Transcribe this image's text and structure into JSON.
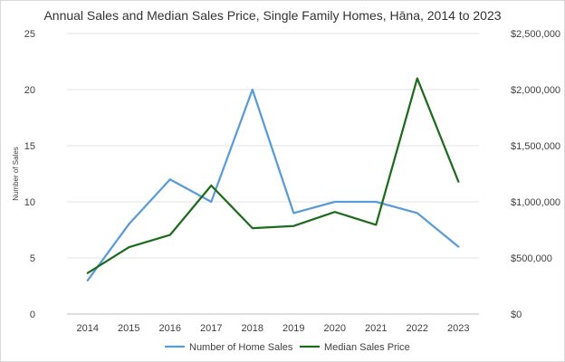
{
  "chart_data": {
    "type": "line",
    "title": "Annual Sales and Median Sales Price, Single Family Homes, Hāna, 2014 to 2023",
    "xlabel": "",
    "ylabel": "Number of Sales",
    "y2label": "",
    "categories": [
      "2014",
      "2015",
      "2016",
      "2017",
      "2018",
      "2019",
      "2020",
      "2021",
      "2022",
      "2023"
    ],
    "ylim": [
      0,
      25
    ],
    "y_ticks": [
      "0",
      "5",
      "10",
      "15",
      "20",
      "25"
    ],
    "y2lim": [
      0,
      2500000
    ],
    "y2_ticks": [
      "$0",
      "$500,000",
      "$1,000,000",
      "$1,500,000",
      "$2,000,000",
      "$2,500,000"
    ],
    "grid": true,
    "legend_position": "bottom",
    "series": [
      {
        "name": "Number of Home Sales",
        "axis": "left",
        "color": "#5b9bd5",
        "values": [
          3,
          8,
          12,
          10,
          20,
          9,
          10,
          10,
          9,
          6
        ]
      },
      {
        "name": "Median Sales Price",
        "axis": "right",
        "color": "#1e6b1e",
        "values": [
          365000,
          595000,
          705000,
          1145000,
          765000,
          785000,
          910000,
          795000,
          2100000,
          1180000
        ]
      }
    ]
  }
}
